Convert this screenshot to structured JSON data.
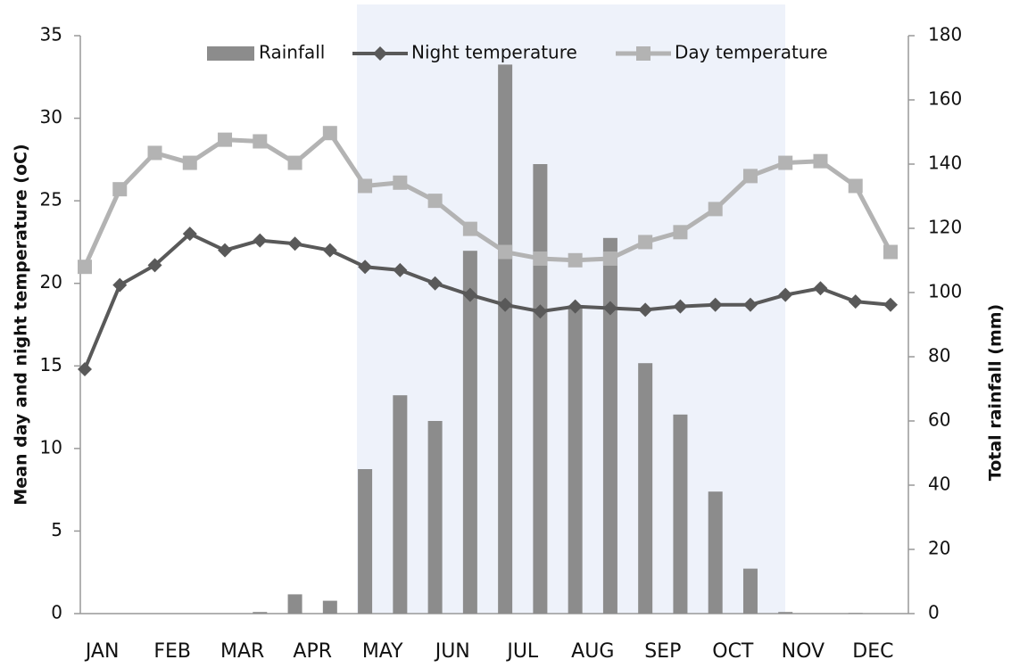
{
  "chart_data": {
    "type": "combo",
    "y_label": "Mean day and night temperature (oC)",
    "y2_label": "Total rainfall (mm)",
    "categories": [
      "JAN",
      null,
      "FEB",
      null,
      "MAR",
      null,
      "APR",
      null,
      "MAY",
      null,
      "JUN",
      null,
      "JUL",
      null,
      "AUG",
      null,
      "SEP",
      null,
      "OCT",
      null,
      "NOV",
      null,
      "DEC",
      null
    ],
    "ylim": [
      0,
      35
    ],
    "yticks": [
      0,
      5,
      10,
      15,
      20,
      25,
      30,
      35
    ],
    "y2lim": [
      0,
      180
    ],
    "y2ticks": [
      0,
      20,
      40,
      60,
      80,
      100,
      120,
      140,
      160,
      180
    ],
    "series": [
      {
        "name": "Rainfall",
        "type": "bar",
        "axis": "y2",
        "color": "#8c8c8c",
        "values": [
          0,
          0,
          0,
          0,
          0,
          0.5,
          6,
          4,
          45,
          68,
          60,
          113,
          171,
          140,
          96,
          117,
          78,
          62,
          38,
          14,
          0.5,
          0,
          0.2,
          0
        ]
      },
      {
        "name": "Night temperature",
        "type": "line",
        "marker": "diamond",
        "color": "#595959",
        "values": [
          14.8,
          19.9,
          21.1,
          23.0,
          22.0,
          22.6,
          22.4,
          22.0,
          21.0,
          20.8,
          20.0,
          19.3,
          18.7,
          18.3,
          18.6,
          18.5,
          18.4,
          18.6,
          18.7,
          18.7,
          19.3,
          19.7,
          18.9,
          18.7
        ]
      },
      {
        "name": "Day temperature",
        "type": "line",
        "marker": "square",
        "color": "#b3b3b3",
        "values": [
          21.0,
          25.7,
          27.9,
          27.3,
          28.7,
          28.6,
          27.3,
          29.1,
          25.9,
          26.1,
          25.0,
          23.3,
          21.9,
          21.5,
          21.4,
          21.5,
          22.5,
          23.1,
          24.5,
          26.5,
          27.3,
          27.4,
          25.9,
          21.9
        ]
      }
    ]
  }
}
